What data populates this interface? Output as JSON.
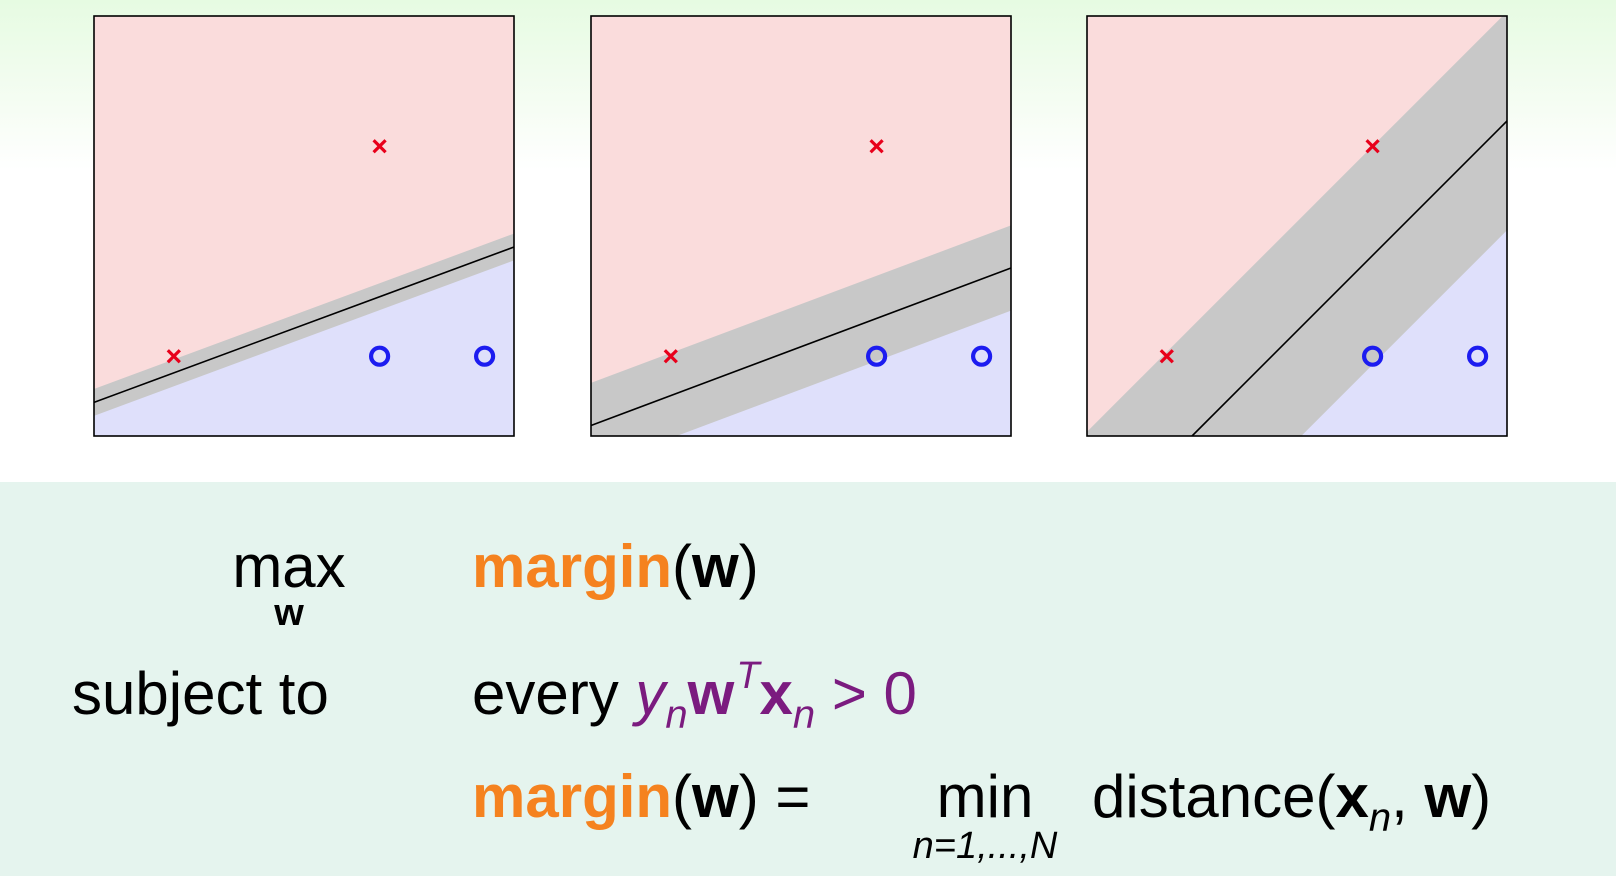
{
  "panels": [
    {
      "line": [
        [
          0,
          0.08
        ],
        [
          1,
          0.45
        ]
      ],
      "halfwidth": 0.03
    },
    {
      "line": [
        [
          0,
          0.025
        ],
        [
          1,
          0.4
        ]
      ],
      "halfwidth": 0.095
    },
    {
      "line": [
        [
          0.25,
          0.0
        ],
        [
          1.0,
          0.75
        ]
      ],
      "halfwidth": 0.184
    }
  ],
  "points": {
    "crosses": [
      [
        0.68,
        0.69
      ],
      [
        0.19,
        0.19
      ]
    ],
    "circles": [
      [
        0.68,
        0.19
      ],
      [
        0.93,
        0.19
      ]
    ]
  },
  "colors": {
    "red_region": "#fadcdc",
    "blue_region": "#dfe0fb",
    "margin_band": "#c8c8c8",
    "cross": "#e8001b",
    "circle": "#1c1cf0",
    "orange": "#f5821f",
    "purple": "#7b1b7f"
  },
  "formula": {
    "max_op": "max",
    "max_sub": "w",
    "objective_name": "margin",
    "objective_arg": "w",
    "subject_to": "subject to",
    "every": "every",
    "y": "y",
    "n": "n",
    "w": "w",
    "T": "T",
    "x": "x",
    "gt_zero": "> 0",
    "equals": "=",
    "min_op": "min",
    "min_sub": "n=1,...,N",
    "distance": "distance"
  }
}
